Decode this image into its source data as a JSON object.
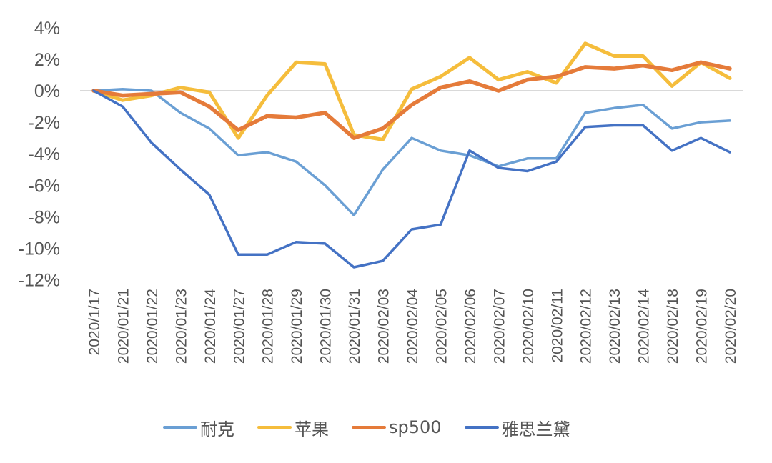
{
  "chart_data": {
    "type": "line",
    "title": "",
    "xlabel": "",
    "ylabel": "",
    "ylim": [
      -12,
      4
    ],
    "yticks": [
      "4%",
      "2%",
      "0%",
      "-2%",
      "-4%",
      "-6%",
      "-8%",
      "-10%",
      "-12%"
    ],
    "ytick_values": [
      4,
      2,
      0,
      -2,
      -4,
      -6,
      -8,
      -10,
      -12
    ],
    "grid": "zero line only",
    "legend_position": "bottom",
    "categories": [
      "2020/1/17",
      "2020/01/21",
      "2020/01/22",
      "2020/01/23",
      "2020/01/24",
      "2020/01/27",
      "2020/01/28",
      "2020/01/29",
      "2020/01/30",
      "2020/01/31",
      "2020/02/03",
      "2020/02/04",
      "2020/02/05",
      "2020/02/06",
      "2020/02/07",
      "2020/02/10",
      "2020/02/11",
      "2020/02/12",
      "2020/02/13",
      "2020/02/14",
      "2020/02/18",
      "2020/02/19",
      "2020/02/20"
    ],
    "series": [
      {
        "name": "耐克",
        "color": "#6A9FD4",
        "width": 3.5,
        "values": [
          0,
          0.1,
          0,
          -1.4,
          -2.4,
          -4.1,
          -3.9,
          -4.5,
          -6.0,
          -7.9,
          -5.0,
          -3.0,
          -3.8,
          -4.1,
          -4.8,
          -4.3,
          -4.3,
          -1.4,
          -1.1,
          -0.9,
          -2.4,
          -2.0,
          -1.9
        ]
      },
      {
        "name": "苹果",
        "color": "#F5BD3C",
        "width": 5,
        "values": [
          0,
          -0.6,
          -0.3,
          0.2,
          -0.1,
          -3.0,
          -0.3,
          1.8,
          1.7,
          -2.8,
          -3.1,
          0.1,
          0.9,
          2.1,
          0.7,
          1.2,
          0.5,
          3.0,
          2.2,
          2.2,
          0.3,
          1.8,
          0.8
        ]
      },
      {
        "name": "sp500",
        "color": "#E57B3A",
        "width": 5.5,
        "values": [
          0,
          -0.3,
          -0.2,
          -0.1,
          -1.0,
          -2.5,
          -1.6,
          -1.7,
          -1.4,
          -3.0,
          -2.4,
          -0.9,
          0.2,
          0.6,
          0.0,
          0.7,
          0.9,
          1.5,
          1.4,
          1.6,
          1.3,
          1.8,
          1.4
        ]
      },
      {
        "name": "雅思兰黛",
        "color": "#4472C4",
        "width": 3.5,
        "values": [
          0,
          -1.0,
          -3.3,
          -5.0,
          -6.6,
          -10.4,
          -10.4,
          -9.6,
          -9.7,
          -11.2,
          -10.8,
          -8.8,
          -8.5,
          -3.8,
          -4.9,
          -5.1,
          -4.5,
          -2.3,
          -2.2,
          -2.2,
          -3.8,
          -3.0,
          -3.9
        ]
      }
    ]
  },
  "legend": {
    "items": [
      {
        "label": "耐克",
        "color": "#6A9FD4"
      },
      {
        "label": "苹果",
        "color": "#F5BD3C"
      },
      {
        "label": "sp500",
        "color": "#E57B3A"
      },
      {
        "label": "雅思兰黛",
        "color": "#4472C4"
      }
    ]
  },
  "style": {
    "zero_line_color": "#D9D9D9",
    "tick_color": "#555555"
  }
}
